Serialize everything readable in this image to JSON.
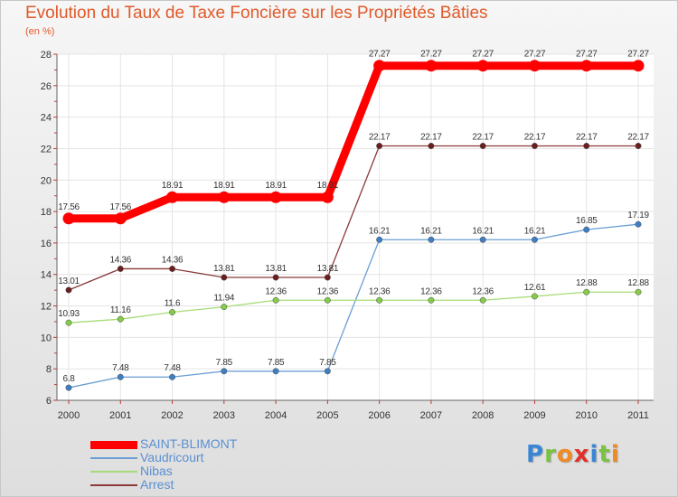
{
  "title": "Evolution du Taux de Taxe Foncière sur les Propriétés Bâties",
  "subtitle": "(en %)",
  "logo": {
    "text": "Proxiti",
    "letters": [
      {
        "ch": "P",
        "color": "#3a86d4"
      },
      {
        "ch": "r",
        "color": "#7cc242"
      },
      {
        "ch": "o",
        "color": "#f08a24"
      },
      {
        "ch": "x",
        "color": "#e0322a"
      },
      {
        "ch": "i",
        "color": "#3a86d4"
      },
      {
        "ch": "t",
        "color": "#7cc242"
      },
      {
        "ch": "i",
        "color": "#f08a24"
      }
    ]
  },
  "chart_data": {
    "type": "line",
    "x": [
      "2000",
      "2001",
      "2002",
      "2003",
      "2004",
      "2005",
      "2006",
      "2007",
      "2008",
      "2009",
      "2010",
      "2011"
    ],
    "ylim": [
      6,
      28
    ],
    "yticks": [
      6,
      8,
      10,
      12,
      14,
      16,
      18,
      20,
      22,
      24,
      26,
      28
    ],
    "grid": true,
    "legend_position": "bottom-left",
    "series": [
      {
        "name": "SAINT-BLIMONT",
        "color": "#ff0000",
        "marker_color": "#ff0000",
        "values": [
          17.56,
          17.56,
          18.91,
          18.91,
          18.91,
          18.91,
          27.27,
          27.27,
          27.27,
          27.27,
          27.27,
          27.27
        ],
        "labels": [
          "17.56",
          "17.56",
          "18.91",
          "18.91",
          "18.91",
          "18.91",
          "27.27",
          "27.27",
          "27.27",
          "27.27",
          "27.27",
          "27.27"
        ]
      },
      {
        "name": "Vaudricourt",
        "color": "#6b9fd4",
        "marker_color": "#3d7fc4",
        "values": [
          6.8,
          7.48,
          7.48,
          7.85,
          7.85,
          7.85,
          16.21,
          16.21,
          16.21,
          16.21,
          16.85,
          17.19
        ],
        "labels": [
          "6.8",
          "7.48",
          "7.48",
          "7.85",
          "7.85",
          "7.85",
          "16.21",
          "16.21",
          "16.21",
          "16.21",
          "16.85",
          "17.19"
        ]
      },
      {
        "name": "Nibas",
        "color": "#a8dc78",
        "marker_color": "#86cc4a",
        "values": [
          10.93,
          11.16,
          11.6,
          11.94,
          12.36,
          12.36,
          12.36,
          12.36,
          12.36,
          12.61,
          12.88,
          12.88
        ],
        "labels": [
          "10.93",
          "11.16",
          "11.6",
          "11.94",
          "12.36",
          "12.36",
          "12.36",
          "12.36",
          "12.36",
          "12.61",
          "12.88",
          "12.88"
        ]
      },
      {
        "name": "Arrest",
        "color": "#8a3a3a",
        "marker_color": "#6a1e1e",
        "values": [
          13.01,
          14.36,
          14.36,
          13.81,
          13.81,
          13.81,
          22.17,
          22.17,
          22.17,
          22.17,
          22.17,
          22.17
        ],
        "labels": [
          "13.01",
          "14.36",
          "14.36",
          "13.81",
          "13.81",
          "13.81",
          "22.17",
          "22.17",
          "22.17",
          "22.17",
          "22.17",
          "22.17"
        ]
      }
    ]
  }
}
